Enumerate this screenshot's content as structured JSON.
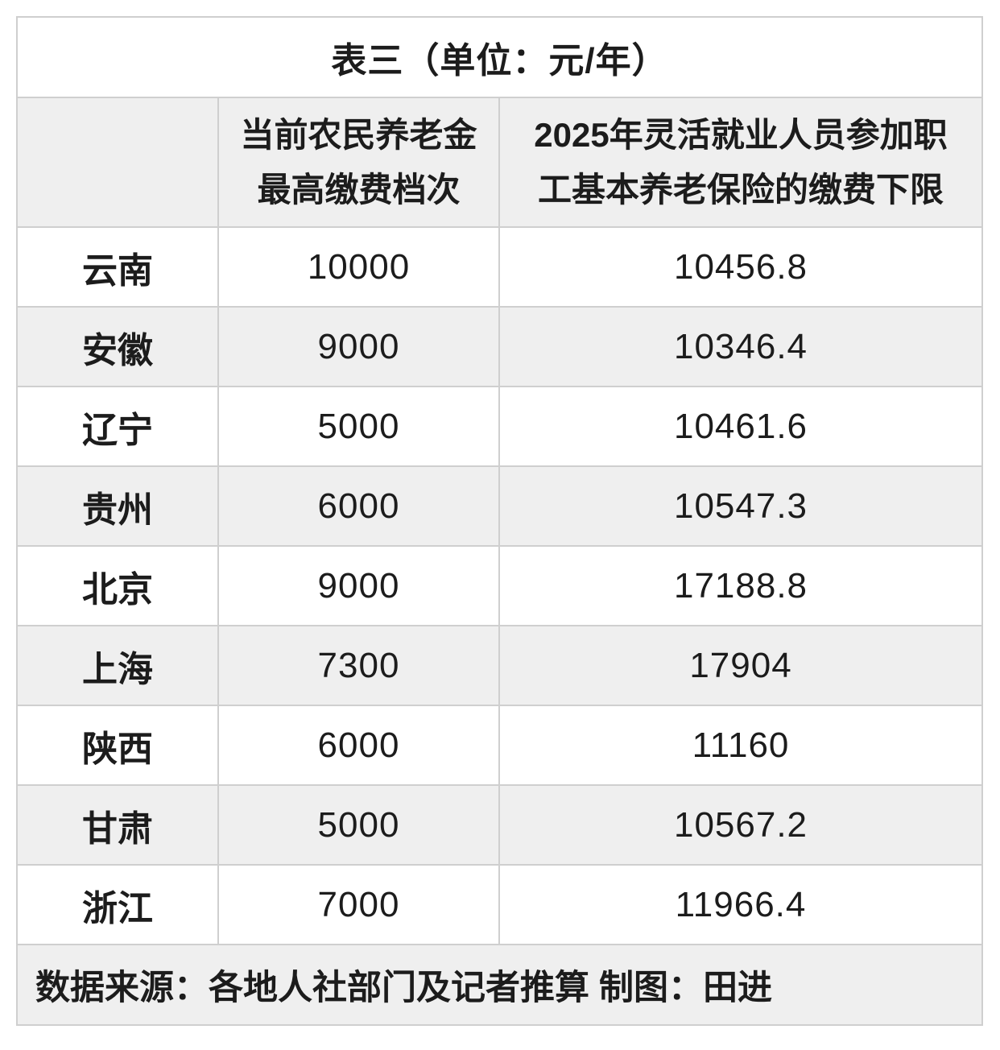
{
  "table": {
    "title": "表三（单位：元/年）",
    "header_col2": "当前农民养老金\n最高缴费档次",
    "header_col3": "2025年灵活就业人员参加职\n工基本养老保险的缴费下限",
    "rows": [
      {
        "province": "云南",
        "tier": "10000",
        "limit": "10456.8"
      },
      {
        "province": "安徽",
        "tier": "9000",
        "limit": "10346.4"
      },
      {
        "province": "辽宁",
        "tier": "5000",
        "limit": "10461.6"
      },
      {
        "province": "贵州",
        "tier": "6000",
        "limit": "10547.3"
      },
      {
        "province": "北京",
        "tier": "9000",
        "limit": "17188.8"
      },
      {
        "province": "上海",
        "tier": "7300",
        "limit": "17904"
      },
      {
        "province": "陕西",
        "tier": "6000",
        "limit": "11160"
      },
      {
        "province": "甘肃",
        "tier": "5000",
        "limit": "10567.2"
      },
      {
        "province": "浙江",
        "tier": "7000",
        "limit": "11966.4"
      }
    ],
    "source_note": "数据来源：各地人社部门及记者推算 制图：田进"
  },
  "colors": {
    "zebra_row": "#efefef",
    "grid_line": "#cfcfcf",
    "text": "#1c1c1c",
    "background": "#ffffff"
  },
  "chart_data": {
    "type": "table",
    "title": "表三（单位：元/年）",
    "unit": "元/年",
    "columns": [
      "",
      "当前农民养老金最高缴费档次",
      "2025年灵活就业人员参加职工基本养老保险的缴费下限"
    ],
    "rows": [
      [
        "云南",
        10000,
        10456.8
      ],
      [
        "安徽",
        9000,
        10346.4
      ],
      [
        "辽宁",
        5000,
        10461.6
      ],
      [
        "贵州",
        6000,
        10547.3
      ],
      [
        "北京",
        9000,
        17188.8
      ],
      [
        "上海",
        7300,
        17904
      ],
      [
        "陕西",
        6000,
        11160
      ],
      [
        "甘肃",
        5000,
        10567.2
      ],
      [
        "浙江",
        7000,
        11966.4
      ]
    ],
    "source_note": "数据来源：各地人社部门及记者推算 制图：田进"
  }
}
